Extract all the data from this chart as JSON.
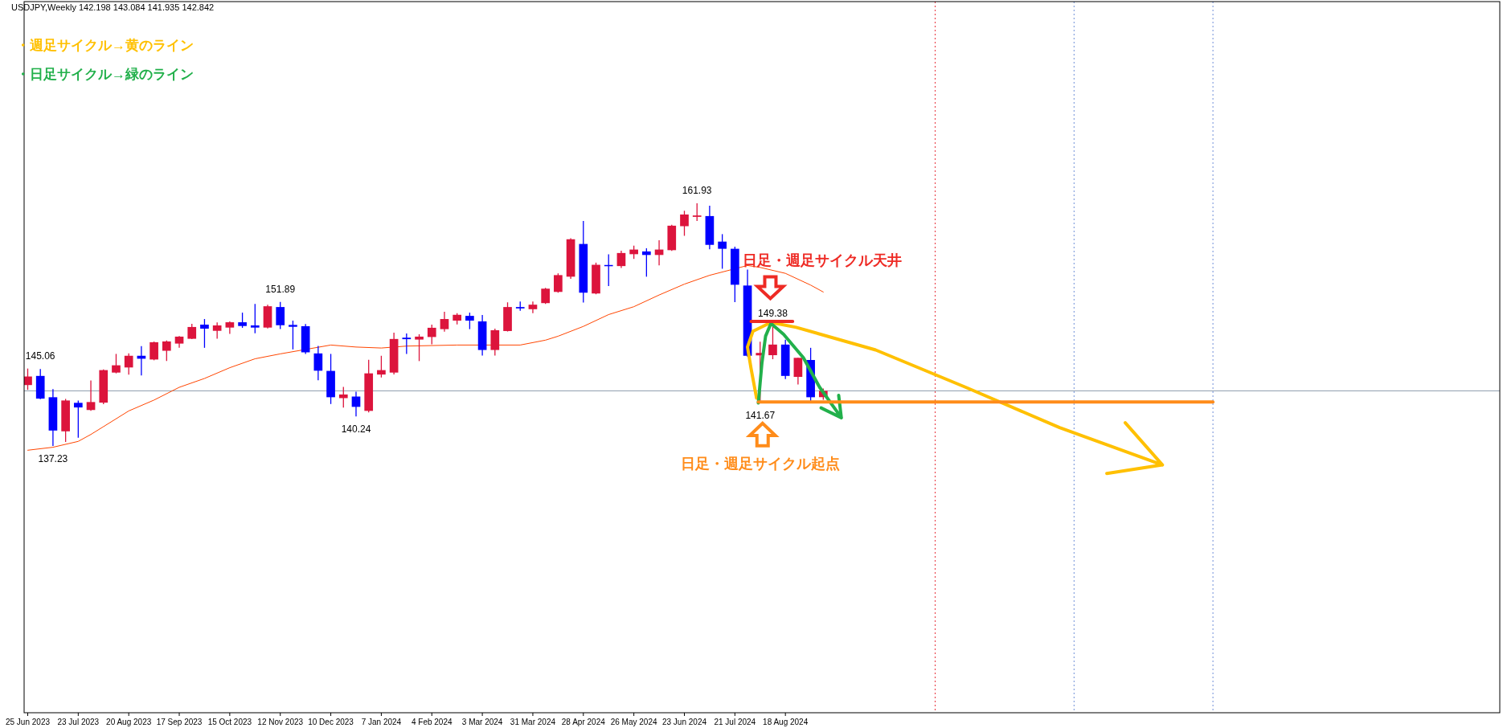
{
  "chart_data": {
    "type": "candlestick",
    "title": "USDJPY,Weekly  142.198 143.084 141.935 142.842",
    "x": [
      "2023-06-25",
      "2023-07-02",
      "2023-07-09",
      "2023-07-16",
      "2023-07-23",
      "2023-07-30",
      "2023-08-06",
      "2023-08-13",
      "2023-08-20",
      "2023-08-27",
      "2023-09-03",
      "2023-09-10",
      "2023-09-17",
      "2023-09-24",
      "2023-10-01",
      "2023-10-08",
      "2023-10-15",
      "2023-10-22",
      "2023-10-29",
      "2023-11-05",
      "2023-11-12",
      "2023-11-19",
      "2023-11-26",
      "2023-12-03",
      "2023-12-10",
      "2023-12-17",
      "2023-12-24",
      "2023-12-31",
      "2024-01-07",
      "2024-01-14",
      "2024-01-21",
      "2024-01-28",
      "2024-02-04",
      "2024-02-11",
      "2024-02-18",
      "2024-02-25",
      "2024-03-03",
      "2024-03-10",
      "2024-03-17",
      "2024-03-24",
      "2024-03-31",
      "2024-04-07",
      "2024-04-14",
      "2024-04-21",
      "2024-04-28",
      "2024-05-05",
      "2024-05-12",
      "2024-05-19",
      "2024-05-26",
      "2024-06-02",
      "2024-06-09",
      "2024-06-16",
      "2024-06-23",
      "2024-06-30",
      "2024-07-07",
      "2024-07-14",
      "2024-07-21",
      "2024-07-28",
      "2024-08-04",
      "2024-08-11",
      "2024-08-18",
      "2024-08-25",
      "2024-09-01",
      "2024-09-08"
    ],
    "ohlc": [
      [
        143.43,
        145.11,
        142.94,
        144.3
      ],
      [
        144.36,
        145.06,
        142.0,
        142.05
      ],
      [
        142.19,
        143.02,
        137.23,
        138.8
      ],
      [
        138.72,
        142.02,
        137.64,
        141.86
      ],
      [
        141.62,
        141.86,
        138.07,
        141.15
      ],
      [
        140.89,
        143.89,
        140.8,
        141.7
      ],
      [
        141.64,
        145.03,
        141.48,
        144.95
      ],
      [
        144.7,
        146.6,
        144.62,
        145.44
      ],
      [
        145.22,
        146.65,
        144.49,
        146.41
      ],
      [
        146.41,
        147.39,
        144.41,
        146.11
      ],
      [
        146.03,
        147.85,
        145.95,
        147.79
      ],
      [
        146.92,
        147.96,
        145.87,
        147.87
      ],
      [
        147.65,
        148.42,
        147.22,
        148.36
      ],
      [
        148.14,
        149.66,
        148.1,
        149.34
      ],
      [
        149.58,
        150.15,
        147.22,
        149.17
      ],
      [
        148.95,
        149.8,
        148.14,
        149.5
      ],
      [
        149.28,
        149.91,
        148.63,
        149.82
      ],
      [
        149.82,
        150.8,
        149.25,
        149.44
      ],
      [
        149.5,
        151.69,
        148.71,
        149.28
      ],
      [
        149.28,
        151.61,
        149.2,
        151.45
      ],
      [
        151.37,
        151.89,
        149.12,
        149.52
      ],
      [
        149.55,
        149.99,
        147.06,
        149.36
      ],
      [
        149.42,
        149.64,
        146.6,
        146.76
      ],
      [
        146.65,
        147.41,
        143.92,
        144.89
      ],
      [
        144.87,
        146.6,
        141.5,
        142.19
      ],
      [
        142.1,
        143.24,
        141.13,
        142.47
      ],
      [
        142.26,
        142.76,
        140.24,
        141.21
      ],
      [
        140.8,
        146.0,
        140.64,
        144.62
      ],
      [
        144.5,
        146.41,
        144.2,
        144.95
      ],
      [
        144.7,
        148.77,
        144.5,
        148.12
      ],
      [
        148.25,
        148.69,
        146.6,
        148.1
      ],
      [
        148.06,
        148.6,
        145.87,
        148.36
      ],
      [
        148.32,
        149.58,
        147.57,
        149.26
      ],
      [
        149.12,
        150.88,
        148.87,
        150.15
      ],
      [
        149.99,
        150.74,
        149.61,
        150.58
      ],
      [
        150.47,
        150.8,
        149.12,
        149.99
      ],
      [
        149.91,
        150.56,
        146.43,
        147.0
      ],
      [
        147.0,
        149.17,
        146.43,
        149.01
      ],
      [
        148.93,
        151.85,
        148.88,
        151.37
      ],
      [
        151.37,
        151.94,
        150.99,
        151.23
      ],
      [
        151.15,
        151.94,
        150.74,
        151.61
      ],
      [
        151.77,
        153.32,
        151.69,
        153.24
      ],
      [
        152.91,
        154.8,
        152.83,
        154.62
      ],
      [
        154.46,
        158.38,
        154.24,
        158.27
      ],
      [
        157.79,
        160.14,
        151.83,
        152.83
      ],
      [
        152.75,
        155.89,
        152.67,
        155.67
      ],
      [
        155.65,
        156.73,
        153.5,
        155.6
      ],
      [
        155.54,
        157.11,
        155.35,
        156.87
      ],
      [
        156.75,
        157.62,
        156.27,
        157.22
      ],
      [
        157.03,
        157.35,
        154.46,
        156.67
      ],
      [
        156.67,
        158.17,
        155.62,
        157.22
      ],
      [
        157.16,
        159.75,
        157.08,
        159.65
      ],
      [
        159.6,
        161.17,
        158.62,
        160.79
      ],
      [
        160.55,
        161.93,
        160.14,
        160.69
      ],
      [
        160.63,
        161.69,
        157.24,
        157.7
      ],
      [
        158.03,
        158.79,
        155.27,
        157.3
      ],
      [
        157.3,
        157.52,
        151.88,
        153.64
      ],
      [
        153.56,
        155.19,
        146.3,
        146.41
      ],
      [
        146.45,
        147.84,
        141.67,
        146.7
      ],
      [
        146.47,
        149.38,
        146.06,
        147.55
      ],
      [
        147.55,
        148.04,
        144.03,
        144.36
      ],
      [
        144.26,
        146.2,
        143.49,
        146.2
      ],
      [
        145.98,
        147.22,
        141.72,
        142.19
      ],
      [
        142.198,
        143.084,
        141.935,
        142.842
      ]
    ],
    "colors": [
      "#dc143c",
      "#0000ff",
      "#0000ff",
      "#dc143c",
      "#0000ff",
      "#dc143c",
      "#dc143c",
      "#dc143c",
      "#dc143c",
      "#0000ff",
      "#dc143c",
      "#dc143c",
      "#dc143c",
      "#dc143c",
      "#0000ff",
      "#dc143c",
      "#dc143c",
      "#0000ff",
      "#0000ff",
      "#dc143c",
      "#0000ff",
      "#0000ff",
      "#0000ff",
      "#0000ff",
      "#0000ff",
      "#dc143c",
      "#0000ff",
      "#dc143c",
      "#dc143c",
      "#dc143c",
      "#0000ff",
      "#dc143c",
      "#dc143c",
      "#dc143c",
      "#dc143c",
      "#0000ff",
      "#0000ff",
      "#dc143c",
      "#dc143c",
      "#0000ff",
      "#dc143c",
      "#dc143c",
      "#dc143c",
      "#dc143c",
      "#0000ff",
      "#dc143c",
      "#0000ff",
      "#dc143c",
      "#dc143c",
      "#0000ff",
      "#dc143c",
      "#dc143c",
      "#dc143c",
      "#dc143c",
      "#0000ff",
      "#0000ff",
      "#0000ff",
      "#0000ff",
      "#dc143c",
      "#dc143c",
      "#0000ff",
      "#dc143c",
      "#0000ff",
      "#dc143c"
    ],
    "xlim": [
      "2023-06-23",
      "2025-09-18"
    ],
    "xticks": [
      {
        "value": "2023-06-25",
        "label": "25 Jun 2023"
      },
      {
        "value": "2023-07-23",
        "label": "23 Jul 2023"
      },
      {
        "value": "2023-08-20",
        "label": "20 Aug 2023"
      },
      {
        "value": "2023-09-17",
        "label": "17 Sep 2023"
      },
      {
        "value": "2023-10-15",
        "label": "15 Oct 2023"
      },
      {
        "value": "2023-11-12",
        "label": "12 Nov 2023"
      },
      {
        "value": "2023-12-10",
        "label": "10 Dec 2023"
      },
      {
        "value": "2024-01-07",
        "label": "7 Jan 2024"
      },
      {
        "value": "2024-02-04",
        "label": "4 Feb 2024"
      },
      {
        "value": "2024-03-03",
        "label": "3 Mar 2024"
      },
      {
        "value": "2024-03-31",
        "label": "31 Mar 2024"
      },
      {
        "value": "2024-04-28",
        "label": "28 Apr 2024"
      },
      {
        "value": "2024-05-26",
        "label": "26 May 2024"
      },
      {
        "value": "2024-06-23",
        "label": "23 Jun 2024"
      },
      {
        "value": "2024-07-21",
        "label": "21 Jul 2024"
      },
      {
        "value": "2024-08-18",
        "label": "18 Aug 2024"
      }
    ],
    "series": [
      {
        "type": "line",
        "color": "#ff4500",
        "x": [
          "2023-06-25",
          "2023-07-09",
          "2023-07-23",
          "2023-07-30",
          "2023-08-06",
          "2023-08-20",
          "2023-09-03",
          "2023-09-17",
          "2023-10-01",
          "2023-10-15",
          "2023-10-29",
          "2023-11-12",
          "2023-12-10",
          "2023-12-24",
          "2024-01-07",
          "2024-01-21",
          "2024-02-18",
          "2024-03-24",
          "2024-04-07",
          "2024-04-14",
          "2024-04-21",
          "2024-04-28",
          "2024-05-12",
          "2024-05-26",
          "2024-06-09",
          "2024-06-23",
          "2024-07-07",
          "2024-07-21",
          "2024-07-28",
          "2024-08-04",
          "2024-08-18",
          "2024-09-01",
          "2024-09-08"
        ],
        "values": [
          136.8,
          137.1,
          137.7,
          138.4,
          139.2,
          140.8,
          141.9,
          143.2,
          144.1,
          145.2,
          146.1,
          146.6,
          147.5,
          147.3,
          147.2,
          147.4,
          147.5,
          147.5,
          148.0,
          148.4,
          148.9,
          149.4,
          150.6,
          151.4,
          152.6,
          153.7,
          154.6,
          null,
          155.6,
          155.4,
          154.8,
          153.6,
          152.9
        ]
      },
      {
        "type": "line",
        "color": "#ffc000",
        "x": [
          "2024-08-02",
          "2024-07-30",
          "2024-07-28",
          "2024-07-31",
          "2024-08-10",
          "2024-08-24",
          "2024-10-07",
          "2024-11-26",
          "2025-01-17",
          "2025-03-15"
        ],
        "values": [
          142.1,
          145.1,
          147.3,
          148.9,
          149.8,
          149.3,
          147.0,
          143.2,
          139.1,
          135.3
        ]
      },
      {
        "type": "line",
        "color": "#22b04b",
        "x": [
          "2024-08-03",
          "2024-08-05",
          "2024-08-07",
          "2024-08-10",
          "2024-08-17",
          "2024-08-28",
          "2024-09-06",
          "2024-09-18"
        ],
        "values": [
          141.6,
          145.7,
          148.4,
          149.7,
          148.6,
          146.2,
          143.2,
          140.1
        ]
      },
      {
        "type": "line",
        "color": "#ff8c1a",
        "x": [
          "2024-08-03",
          "2025-04-12"
        ],
        "values": [
          141.7,
          141.7
        ]
      },
      {
        "type": "line",
        "color": "#ee2a24",
        "x": [
          "2024-07-30",
          "2024-08-22"
        ],
        "values": [
          149.9,
          149.9
        ]
      }
    ],
    "ref_lines": [
      {
        "axis": "y",
        "value": 142.842,
        "color": "#8c9bab",
        "line_style": "solid"
      },
      {
        "axis": "x",
        "value": "2024-11-09",
        "color": "#e8323c",
        "line_style": "dotted"
      },
      {
        "axis": "x",
        "value": "2025-01-25",
        "color": "#6f8fd8",
        "line_style": "dotted"
      },
      {
        "axis": "x",
        "value": "2025-04-12",
        "color": "#6f8fd8",
        "line_style": "dotted"
      }
    ],
    "annotations": [
      "・週足サイクル→黄のライン",
      "・日足サイクル→緑のライン",
      "日足・週足サイクル天井",
      "日足・週足サイクル起点",
      {
        "text": "145.06",
        "x": "2023-07-02",
        "y": 145.06
      },
      {
        "text": "137.23",
        "x": "2023-07-09",
        "y": 137.23
      },
      {
        "text": "151.89",
        "x": "2023-11-12",
        "y": 151.89
      },
      {
        "text": "140.24",
        "x": "2023-12-24",
        "y": 140.24
      },
      {
        "text": "161.93",
        "x": "2024-06-30",
        "y": 161.93
      },
      {
        "text": "149.38",
        "x": "2024-08-11",
        "y": 149.38
      },
      {
        "text": "141.67",
        "x": "2024-08-04",
        "y": 141.67
      }
    ]
  }
}
